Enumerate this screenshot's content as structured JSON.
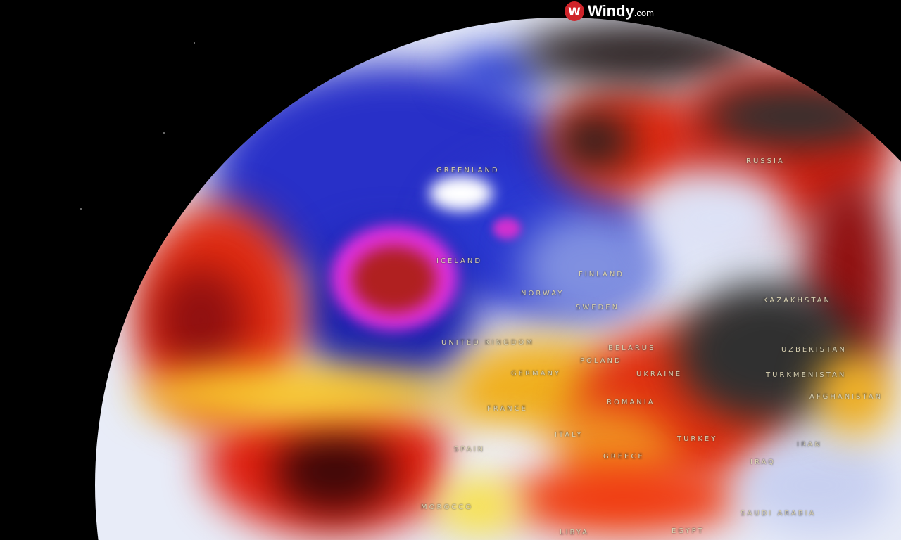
{
  "brand": {
    "icon": "windy-logo-icon",
    "name": "Windy",
    "suffix": ".com",
    "color": "#d0242a"
  },
  "map": {
    "layer": "temperature-anomaly",
    "colors": {
      "cold": "#1a22c8",
      "very_cold": "#e020e0",
      "warm": "#f5e020",
      "hot": "#e02010",
      "extreme": "#303030",
      "neutral": "#e8ecf8"
    },
    "labels": [
      "GREENLAND",
      "RUSSIA",
      "ICELAND",
      "FINLAND",
      "NORWAY",
      "SWEDEN",
      "UNITED KINGDOM",
      "BELARUS",
      "POLAND",
      "GERMANY",
      "UKRAINE",
      "KAZAKHSTAN",
      "UZBEKISTAN",
      "TURKMENISTAN",
      "AFGHANISTAN",
      "ROMANIA",
      "FRANCE",
      "SPAIN",
      "ITALY",
      "GREECE",
      "TURKEY",
      "IRAN",
      "IRAQ",
      "MOROCCO",
      "SAUDI ARABIA",
      "EGYPT",
      "LIBYA"
    ]
  }
}
